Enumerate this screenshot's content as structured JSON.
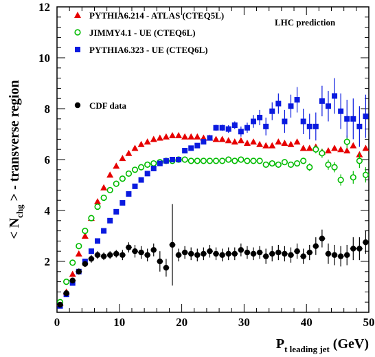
{
  "chart_data": {
    "type": "scatter",
    "title": "",
    "annotation": "LHC prediction",
    "xlabel_main": "P",
    "xlabel_sub": "t leading jet",
    "xlabel_unit": " (GeV)",
    "ylabel_main": "< N",
    "ylabel_sub": "chg",
    "ylabel_rest": " > - transverse region",
    "xlim": [
      0,
      50
    ],
    "ylim": [
      0,
      12
    ],
    "xticks": [
      0,
      10,
      20,
      30,
      40,
      50
    ],
    "yticks": [
      2,
      4,
      6,
      8,
      10,
      12
    ],
    "legend_position": "top-left",
    "series": [
      {
        "name": "PYTHIA6.214 - ATLAS (CTEQ5L)",
        "marker": "triangle",
        "color": "#e60000",
        "x": [
          0.5,
          1.5,
          2.5,
          3.5,
          4.5,
          5.5,
          6.5,
          7.5,
          8.5,
          9.5,
          10.5,
          11.5,
          12.5,
          13.5,
          14.5,
          15.5,
          16.5,
          17.5,
          18.5,
          19.5,
          20.5,
          21.5,
          22.5,
          23.5,
          24.5,
          25.5,
          26.5,
          27.5,
          28.5,
          29.5,
          30.5,
          31.5,
          32.5,
          33.5,
          34.5,
          35.5,
          36.5,
          37.5,
          38.5,
          39.5,
          40.5,
          41.5,
          42.5,
          43.5,
          44.5,
          45.5,
          46.5,
          47.5,
          48.5,
          49.5
        ],
        "y": [
          0.35,
          0.8,
          1.5,
          2.3,
          3.0,
          3.7,
          4.35,
          4.9,
          5.4,
          5.75,
          6.05,
          6.25,
          6.45,
          6.6,
          6.7,
          6.8,
          6.85,
          6.9,
          6.95,
          6.95,
          6.9,
          6.9,
          6.9,
          6.85,
          6.85,
          6.8,
          6.8,
          6.75,
          6.7,
          6.75,
          6.65,
          6.7,
          6.6,
          6.55,
          6.55,
          6.7,
          6.65,
          6.6,
          6.7,
          6.45,
          6.45,
          6.5,
          6.3,
          6.35,
          6.45,
          6.4,
          6.35,
          6.55,
          6.2,
          6.45
        ]
      },
      {
        "name": "JIMMY4.1 - UE (CTEQ6L)",
        "marker": "open-circle",
        "color": "#00bb00",
        "x": [
          0.5,
          1.5,
          2.5,
          3.5,
          4.5,
          5.5,
          6.5,
          7.5,
          8.5,
          9.5,
          10.5,
          11.5,
          12.5,
          13.5,
          14.5,
          15.5,
          16.5,
          17.5,
          18.5,
          19.5,
          20.5,
          21.5,
          22.5,
          23.5,
          24.5,
          25.5,
          26.5,
          27.5,
          28.5,
          29.5,
          30.5,
          31.5,
          32.5,
          33.5,
          34.5,
          35.5,
          36.5,
          37.5,
          38.5,
          39.5,
          40.5,
          41.5,
          42.5,
          43.5,
          44.5,
          45.5,
          46.5,
          47.5,
          48.5,
          49.5
        ],
        "y": [
          0.4,
          1.2,
          1.95,
          2.6,
          3.2,
          3.7,
          4.15,
          4.5,
          4.8,
          5.05,
          5.25,
          5.45,
          5.6,
          5.7,
          5.8,
          5.85,
          5.9,
          5.95,
          5.95,
          6.0,
          6.0,
          5.95,
          5.95,
          5.95,
          5.95,
          5.95,
          5.95,
          6.0,
          5.95,
          6.0,
          5.95,
          5.95,
          5.95,
          5.8,
          5.85,
          5.8,
          5.9,
          5.8,
          5.85,
          5.95,
          5.7,
          6.4,
          6.25,
          5.8,
          5.7,
          5.2,
          6.7,
          5.3,
          5.95,
          5.4
        ],
        "yerr": [
          0,
          0,
          0,
          0,
          0,
          0,
          0,
          0,
          0,
          0,
          0,
          0,
          0,
          0,
          0,
          0,
          0,
          0,
          0,
          0,
          0,
          0,
          0,
          0,
          0,
          0,
          0,
          0,
          0,
          0,
          0,
          0,
          0,
          0.1,
          0.1,
          0.1,
          0.1,
          0.12,
          0.12,
          0.12,
          0.15,
          0.15,
          0.18,
          0.2,
          0.2,
          0.22,
          0.25,
          0.25,
          0.28,
          0.3
        ]
      },
      {
        "name": "PYTHIA6.323 - UE (CTEQ6L)",
        "marker": "square",
        "color": "#0a1adf",
        "x": [
          0.5,
          1.5,
          2.5,
          3.5,
          4.5,
          5.5,
          6.5,
          7.5,
          8.5,
          9.5,
          10.5,
          11.5,
          12.5,
          13.5,
          14.5,
          15.5,
          16.5,
          17.5,
          18.5,
          19.5,
          20.5,
          21.5,
          22.5,
          23.5,
          24.5,
          25.5,
          26.5,
          27.5,
          28.5,
          29.5,
          30.5,
          31.5,
          32.5,
          33.5,
          34.5,
          35.5,
          36.5,
          37.5,
          38.5,
          39.5,
          40.5,
          41.5,
          42.5,
          43.5,
          44.5,
          45.5,
          46.5,
          47.5,
          48.5,
          49.5
        ],
        "y": [
          0.25,
          0.7,
          1.15,
          1.6,
          2.0,
          2.4,
          2.8,
          3.2,
          3.6,
          3.95,
          4.3,
          4.65,
          4.95,
          5.2,
          5.45,
          5.65,
          5.85,
          5.95,
          6.0,
          6.0,
          6.35,
          6.45,
          6.55,
          6.7,
          6.85,
          7.25,
          7.25,
          7.2,
          7.35,
          7.1,
          7.25,
          7.5,
          7.65,
          7.3,
          7.9,
          8.2,
          7.5,
          8.1,
          8.35,
          7.5,
          7.3,
          7.3,
          8.3,
          8.1,
          8.5,
          7.9,
          7.6,
          7.6,
          7.3,
          7.7
        ],
        "yerr": [
          0,
          0,
          0,
          0,
          0,
          0,
          0,
          0,
          0,
          0,
          0,
          0,
          0,
          0,
          0,
          0,
          0,
          0,
          0,
          0,
          0,
          0,
          0,
          0,
          0,
          0.12,
          0.12,
          0.15,
          0.15,
          0.2,
          0.2,
          0.25,
          0.3,
          0.35,
          0.35,
          0.4,
          0.45,
          0.45,
          0.5,
          0.5,
          0.5,
          0.55,
          0.6,
          0.6,
          0.7,
          0.7,
          0.75,
          0.8,
          0.8,
          0.85
        ]
      },
      {
        "name": "CDF data",
        "marker": "filled-circle",
        "color": "#000000",
        "x": [
          0.5,
          1.5,
          2.5,
          3.5,
          4.5,
          5.5,
          6.5,
          7.5,
          8.5,
          9.5,
          10.5,
          11.5,
          12.5,
          13.5,
          14.5,
          15.5,
          16.5,
          17.5,
          18.5,
          19.5,
          20.5,
          21.5,
          22.5,
          23.5,
          24.5,
          25.5,
          26.5,
          27.5,
          28.5,
          29.5,
          30.5,
          31.5,
          32.5,
          33.5,
          34.5,
          35.5,
          36.5,
          37.5,
          38.5,
          39.5,
          40.5,
          41.5,
          42.5,
          43.5,
          44.5,
          45.5,
          46.5,
          47.5,
          48.5,
          49.5
        ],
        "y": [
          0.3,
          0.75,
          1.25,
          1.6,
          1.9,
          2.1,
          2.25,
          2.2,
          2.25,
          2.3,
          2.25,
          2.55,
          2.4,
          2.35,
          2.25,
          2.45,
          2.0,
          1.75,
          2.65,
          2.25,
          2.35,
          2.3,
          2.25,
          2.3,
          2.4,
          2.3,
          2.25,
          2.3,
          2.3,
          2.45,
          2.35,
          2.3,
          2.35,
          2.2,
          2.3,
          2.35,
          2.3,
          2.25,
          2.4,
          2.2,
          2.35,
          2.6,
          2.9,
          2.3,
          2.25,
          2.2,
          2.25,
          2.5,
          2.5,
          2.75
        ],
        "yerr": [
          0.05,
          0.08,
          0.1,
          0.12,
          0.12,
          0.15,
          0.15,
          0.15,
          0.15,
          0.15,
          0.2,
          0.2,
          0.25,
          0.25,
          0.25,
          0.25,
          0.4,
          0.35,
          1.6,
          0.25,
          0.25,
          0.25,
          0.25,
          0.25,
          0.25,
          0.25,
          0.25,
          0.25,
          0.25,
          0.25,
          0.25,
          0.25,
          0.25,
          0.3,
          0.3,
          0.3,
          0.3,
          0.3,
          0.3,
          0.3,
          0.3,
          0.35,
          0.35,
          0.4,
          0.4,
          0.4,
          0.4,
          0.45,
          0.45,
          0.45
        ]
      }
    ]
  }
}
